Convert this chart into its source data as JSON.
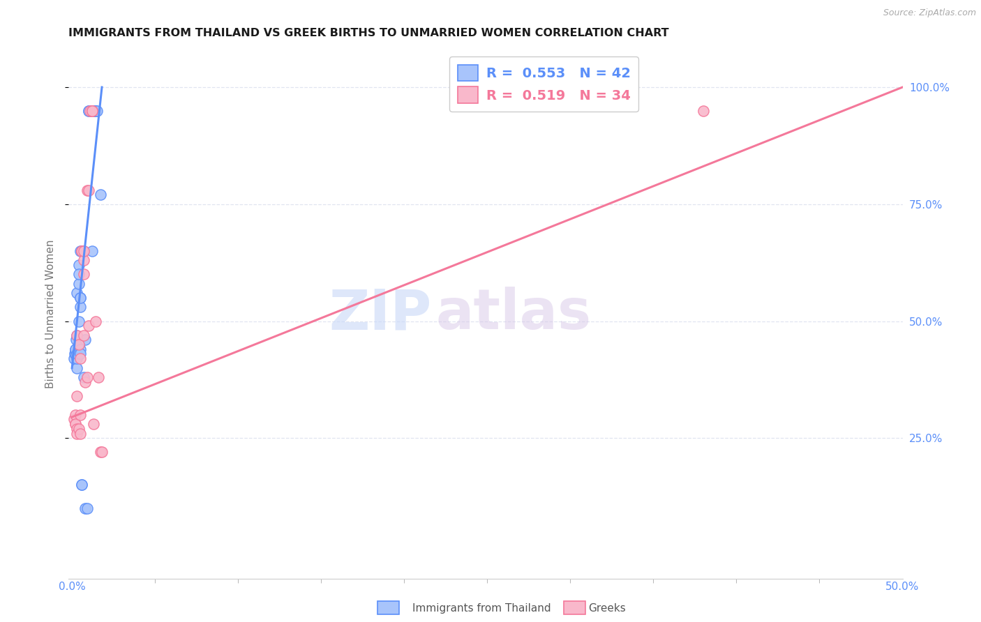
{
  "title": "IMMIGRANTS FROM THAILAND VS GREEK BIRTHS TO UNMARRIED WOMEN CORRELATION CHART",
  "source": "Source: ZipAtlas.com",
  "ylabel": "Births to Unmarried Women",
  "watermark_zip": "ZIP",
  "watermark_atlas": "atlas",
  "blue_color": "#5b8ff9",
  "pink_color": "#f4789a",
  "blue_fill": "#a8c4fb",
  "pink_fill": "#f9b8cb",
  "legend_blue_R": "0.553",
  "legend_blue_N": "42",
  "legend_pink_R": "0.519",
  "legend_pink_N": "34",
  "blue_scatter_x": [
    0.001,
    0.0015,
    0.002,
    0.002,
    0.002,
    0.0025,
    0.003,
    0.003,
    0.003,
    0.003,
    0.003,
    0.004,
    0.004,
    0.004,
    0.004,
    0.004,
    0.005,
    0.005,
    0.005,
    0.005,
    0.005,
    0.005,
    0.006,
    0.006,
    0.006,
    0.007,
    0.007,
    0.008,
    0.008,
    0.009,
    0.01,
    0.01,
    0.012,
    0.012,
    0.012,
    0.013,
    0.013,
    0.013,
    0.014,
    0.014,
    0.015,
    0.017
  ],
  "blue_scatter_y": [
    0.42,
    0.43,
    0.43,
    0.44,
    0.44,
    0.46,
    0.4,
    0.42,
    0.47,
    0.56,
    0.43,
    0.45,
    0.62,
    0.58,
    0.6,
    0.5,
    0.55,
    0.53,
    0.55,
    0.44,
    0.65,
    0.43,
    0.65,
    0.15,
    0.15,
    0.38,
    0.65,
    0.46,
    0.1,
    0.1,
    0.95,
    0.95,
    0.95,
    0.95,
    0.65,
    0.95,
    0.95,
    0.95,
    0.95,
    0.95,
    0.95,
    0.77
  ],
  "pink_scatter_x": [
    0.001,
    0.002,
    0.002,
    0.002,
    0.003,
    0.003,
    0.003,
    0.003,
    0.004,
    0.004,
    0.005,
    0.005,
    0.005,
    0.006,
    0.006,
    0.007,
    0.007,
    0.007,
    0.007,
    0.008,
    0.009,
    0.009,
    0.01,
    0.01,
    0.011,
    0.012,
    0.012,
    0.012,
    0.013,
    0.014,
    0.016,
    0.017,
    0.018,
    0.38
  ],
  "pink_scatter_y": [
    0.29,
    0.28,
    0.3,
    0.28,
    0.27,
    0.34,
    0.26,
    0.47,
    0.45,
    0.27,
    0.3,
    0.42,
    0.26,
    0.65,
    0.65,
    0.63,
    0.47,
    0.65,
    0.6,
    0.37,
    0.78,
    0.38,
    0.49,
    0.78,
    0.95,
    0.95,
    0.95,
    0.95,
    0.28,
    0.5,
    0.38,
    0.22,
    0.22,
    0.95
  ],
  "blue_trend_x": [
    0.0,
    0.018
  ],
  "blue_trend_y": [
    0.4,
    1.0
  ],
  "pink_trend_x": [
    0.0,
    0.5
  ],
  "pink_trend_y": [
    0.295,
    1.0
  ],
  "xlim_low": -0.002,
  "xlim_high": 0.5,
  "ylim_low": -0.05,
  "ylim_high": 1.08,
  "grid_color": "#e0e4f0",
  "background": "#ffffff",
  "title_color": "#1a1a1a",
  "right_axis_color": "#5b8ff9",
  "x_tick_vals": [
    0.0,
    0.05,
    0.1,
    0.15,
    0.2,
    0.25,
    0.3,
    0.35,
    0.4,
    0.45,
    0.5
  ],
  "x_minor_tick_vals": [
    0.025,
    0.075,
    0.125,
    0.175,
    0.225,
    0.275,
    0.325,
    0.375,
    0.425,
    0.475
  ],
  "y_tick_vals": [
    0.25,
    0.5,
    0.75,
    1.0
  ]
}
